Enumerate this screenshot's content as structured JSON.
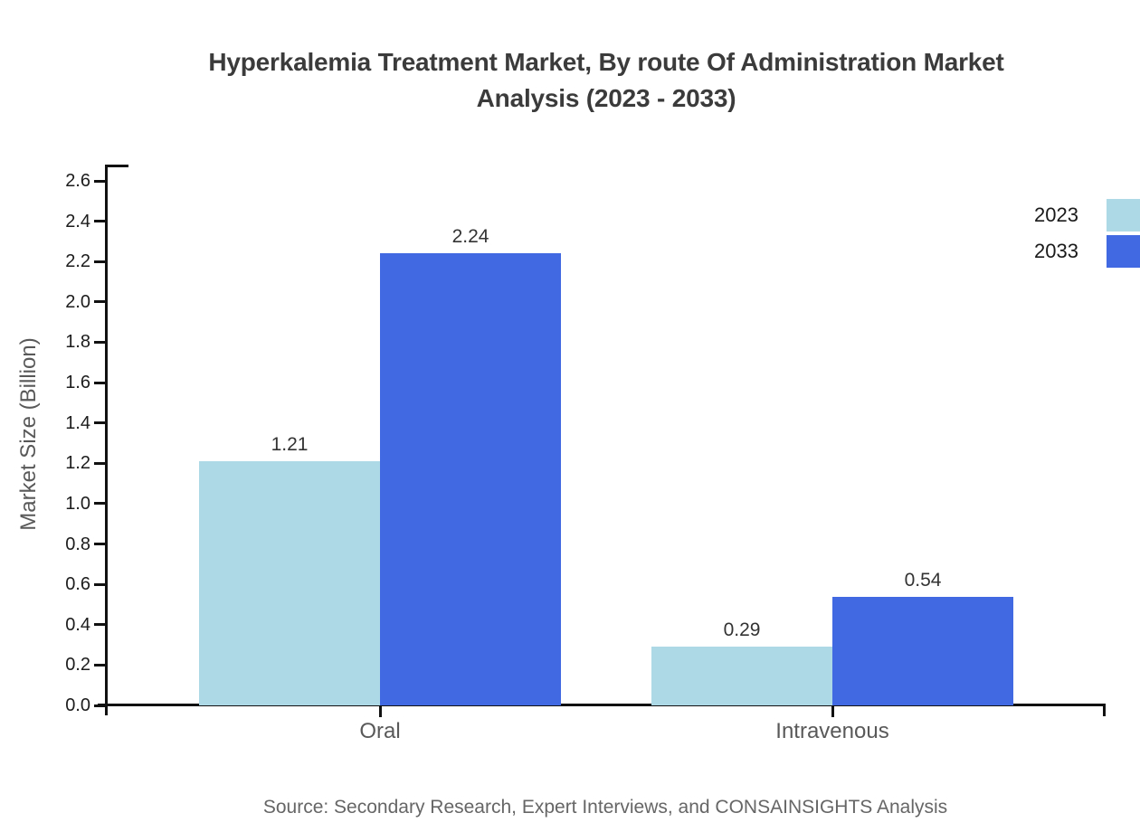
{
  "title": "Hyperkalemia Treatment Market, By route Of Administration Market Analysis (2023 - 2033)",
  "source_note": "Source: Secondary Research, Expert Interviews, and CONSAINSIGHTS Analysis",
  "colors": {
    "series_2023": "#ADD8E6",
    "series_2033": "#4169E1",
    "axis": "#111111",
    "title_text": "#3b3b3b",
    "muted_text": "#595959"
  },
  "chart_data": {
    "type": "bar",
    "title": "Hyperkalemia Treatment Market, By route Of Administration Market Analysis (2023 - 2033)",
    "categories": [
      "Oral",
      "Intravenous"
    ],
    "series": [
      {
        "name": "2023",
        "color": "#ADD8E6",
        "values": [
          1.21,
          0.29
        ]
      },
      {
        "name": "2033",
        "color": "#4169E1",
        "values": [
          2.24,
          0.54
        ]
      }
    ],
    "value_labels": [
      "1.21",
      "2.24",
      "0.29",
      "0.54"
    ],
    "xlabel": "",
    "ylabel": "Market Size (Billion)",
    "ylim": [
      0.0,
      2.6
    ],
    "ytick_step": 0.2,
    "ytick_labels": [
      "0.0",
      "0.2",
      "0.4",
      "0.6",
      "0.8",
      "1.0",
      "1.2",
      "1.4",
      "1.6",
      "1.8",
      "2.0",
      "2.2",
      "2.4",
      "2.6"
    ],
    "grid": false,
    "legend_position": "top-right",
    "legend_entries": [
      "2023",
      "2033"
    ]
  }
}
